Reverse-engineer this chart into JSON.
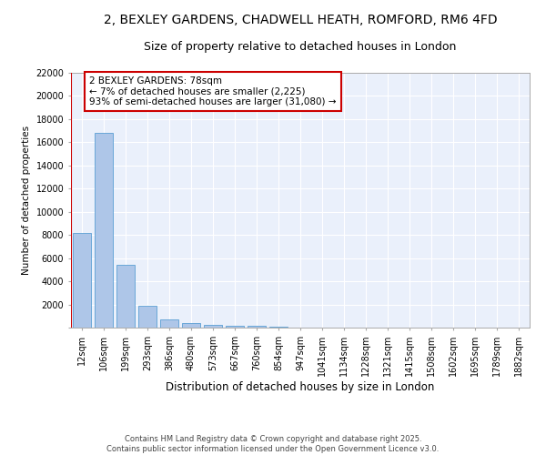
{
  "title_line1": "2, BEXLEY GARDENS, CHADWELL HEATH, ROMFORD, RM6 4FD",
  "title_line2": "Size of property relative to detached houses in London",
  "xlabel": "Distribution of detached houses by size in London",
  "ylabel": "Number of detached properties",
  "categories": [
    "12sqm",
    "106sqm",
    "199sqm",
    "293sqm",
    "386sqm",
    "480sqm",
    "573sqm",
    "667sqm",
    "760sqm",
    "854sqm",
    "947sqm",
    "1041sqm",
    "1134sqm",
    "1228sqm",
    "1321sqm",
    "1415sqm",
    "1508sqm",
    "1602sqm",
    "1695sqm",
    "1789sqm",
    "1882sqm"
  ],
  "values": [
    8200,
    16800,
    5450,
    1900,
    700,
    380,
    220,
    180,
    130,
    100,
    0,
    0,
    0,
    0,
    0,
    0,
    0,
    0,
    0,
    0,
    0
  ],
  "bar_color": "#aec6e8",
  "bar_edge_color": "#5a9fd4",
  "vline_color": "#cc0000",
  "annotation_text": "2 BEXLEY GARDENS: 78sqm\n← 7% of detached houses are smaller (2,225)\n93% of semi-detached houses are larger (31,080) →",
  "annotation_box_color": "#ffffff",
  "annotation_box_edge": "#cc0000",
  "ylim": [
    0,
    22000
  ],
  "yticks": [
    0,
    2000,
    4000,
    6000,
    8000,
    10000,
    12000,
    14000,
    16000,
    18000,
    20000,
    22000
  ],
  "background_color": "#eaf0fb",
  "footer_text": "Contains HM Land Registry data © Crown copyright and database right 2025.\nContains public sector information licensed under the Open Government Licence v3.0.",
  "title_fontsize": 10,
  "subtitle_fontsize": 9,
  "xlabel_fontsize": 8.5,
  "ylabel_fontsize": 7.5,
  "tick_fontsize": 7,
  "footer_fontsize": 6,
  "annot_fontsize": 7.5
}
